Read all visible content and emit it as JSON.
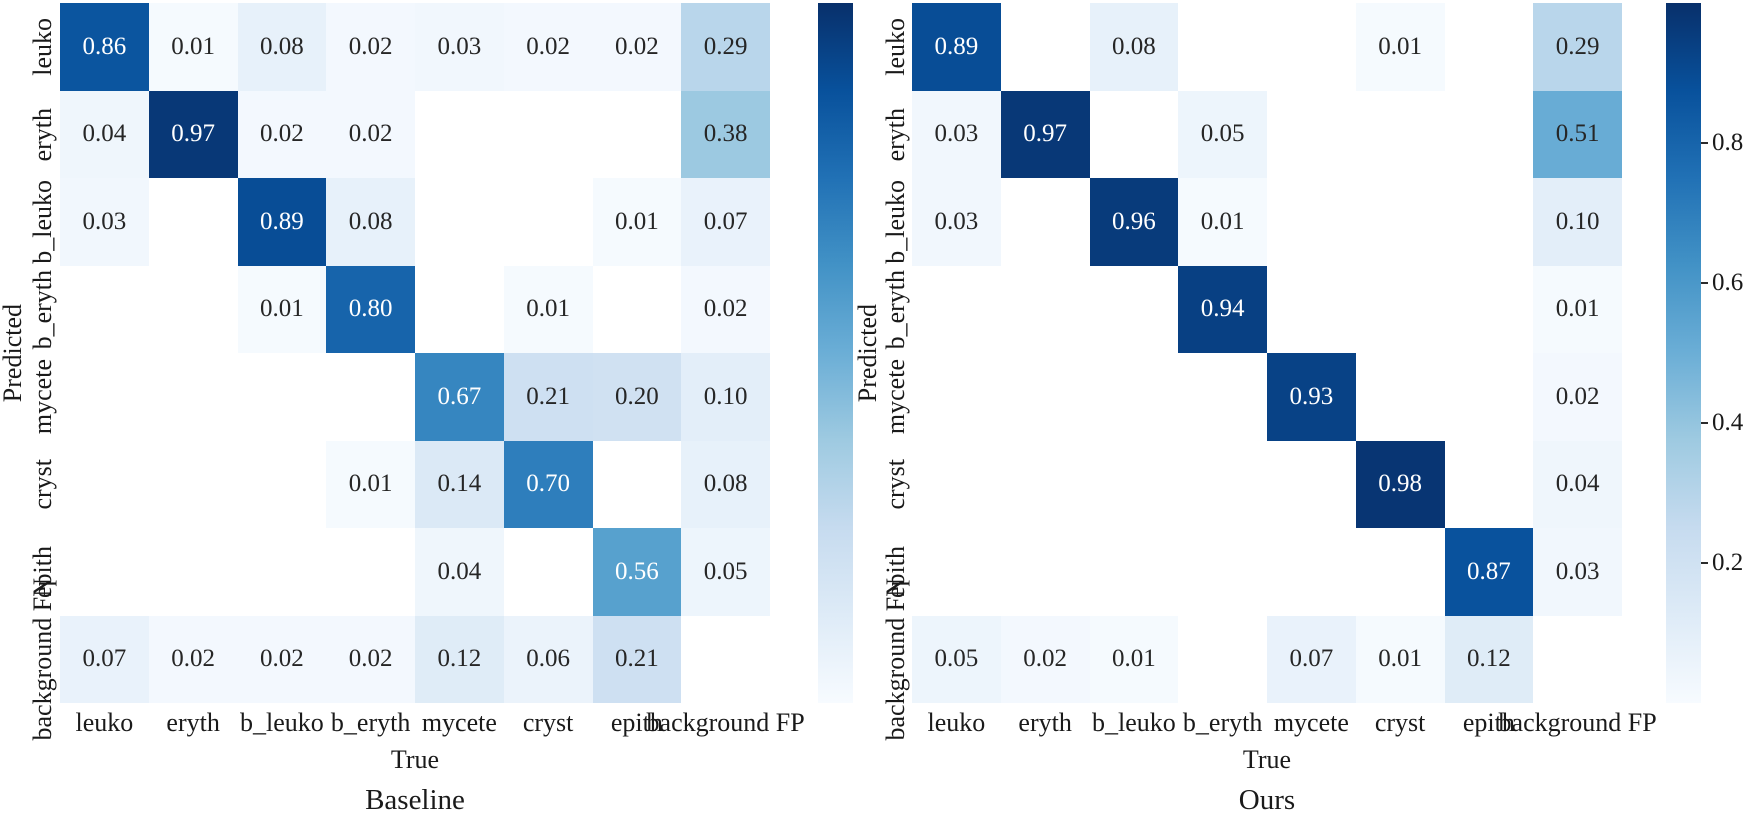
{
  "figure_kind": "confusion-matrix-comparison",
  "colormap_stops": [
    "#f7fbff",
    "#deebf7",
    "#c6dbef",
    "#9ecae1",
    "#6baed6",
    "#4292c6",
    "#2171b5",
    "#08519c",
    "#08306b"
  ],
  "empty_cell_color": "#ffffff",
  "annotation_colors": {
    "light_cell": "#262626",
    "dark_cell": "#ffffff",
    "white_text_threshold": 0.55
  },
  "chart_data": [
    {
      "type": "heatmap",
      "title": "Baseline",
      "xlabel": "True",
      "ylabel": "Predicted",
      "colormap": "Blues",
      "vmin": 0,
      "vmax": 1,
      "x_categories": [
        "leuko",
        "eryth",
        "b_leuko",
        "b_eryth",
        "mycete",
        "cryst",
        "epith",
        "background FP"
      ],
      "y_categories": [
        "leuko",
        "eryth",
        "b_leuko",
        "b_eryth",
        "mycete",
        "cryst",
        "epith",
        "background FN"
      ],
      "matrix": [
        [
          0.86,
          0.01,
          0.08,
          0.02,
          0.03,
          0.02,
          0.02,
          0.29
        ],
        [
          0.04,
          0.97,
          0.02,
          0.02,
          null,
          null,
          null,
          0.38
        ],
        [
          0.03,
          null,
          0.89,
          0.08,
          null,
          null,
          0.01,
          0.07
        ],
        [
          null,
          null,
          0.01,
          0.8,
          null,
          0.01,
          null,
          0.02
        ],
        [
          null,
          null,
          null,
          null,
          0.67,
          0.21,
          0.2,
          0.1
        ],
        [
          null,
          null,
          null,
          0.01,
          0.14,
          0.7,
          null,
          0.08
        ],
        [
          null,
          null,
          null,
          null,
          0.04,
          null,
          0.56,
          0.05
        ],
        [
          0.07,
          0.02,
          0.02,
          0.02,
          0.12,
          0.06,
          0.21,
          null
        ]
      ],
      "colorbar_ticks": []
    },
    {
      "type": "heatmap",
      "title": "Ours",
      "xlabel": "True",
      "ylabel": "Predicted",
      "colormap": "Blues",
      "vmin": 0,
      "vmax": 1,
      "x_categories": [
        "leuko",
        "eryth",
        "b_leuko",
        "b_eryth",
        "mycete",
        "cryst",
        "epith",
        "background FP"
      ],
      "y_categories": [
        "leuko",
        "eryth",
        "b_leuko",
        "b_eryth",
        "mycete",
        "cryst",
        "epith",
        "background FN"
      ],
      "matrix": [
        [
          0.89,
          null,
          0.08,
          null,
          null,
          0.01,
          null,
          0.29
        ],
        [
          0.03,
          0.97,
          null,
          0.05,
          null,
          null,
          null,
          0.51
        ],
        [
          0.03,
          null,
          0.96,
          0.01,
          null,
          null,
          null,
          0.1
        ],
        [
          null,
          null,
          null,
          0.94,
          null,
          null,
          null,
          0.01
        ],
        [
          null,
          null,
          null,
          null,
          0.93,
          null,
          null,
          0.02
        ],
        [
          null,
          null,
          null,
          null,
          null,
          0.98,
          null,
          0.04
        ],
        [
          null,
          null,
          null,
          null,
          null,
          null,
          0.87,
          0.03
        ],
        [
          0.05,
          0.02,
          0.01,
          null,
          0.07,
          0.01,
          0.12,
          null
        ]
      ],
      "colorbar_ticks": [
        0.2,
        0.4,
        0.6,
        0.8
      ]
    }
  ]
}
